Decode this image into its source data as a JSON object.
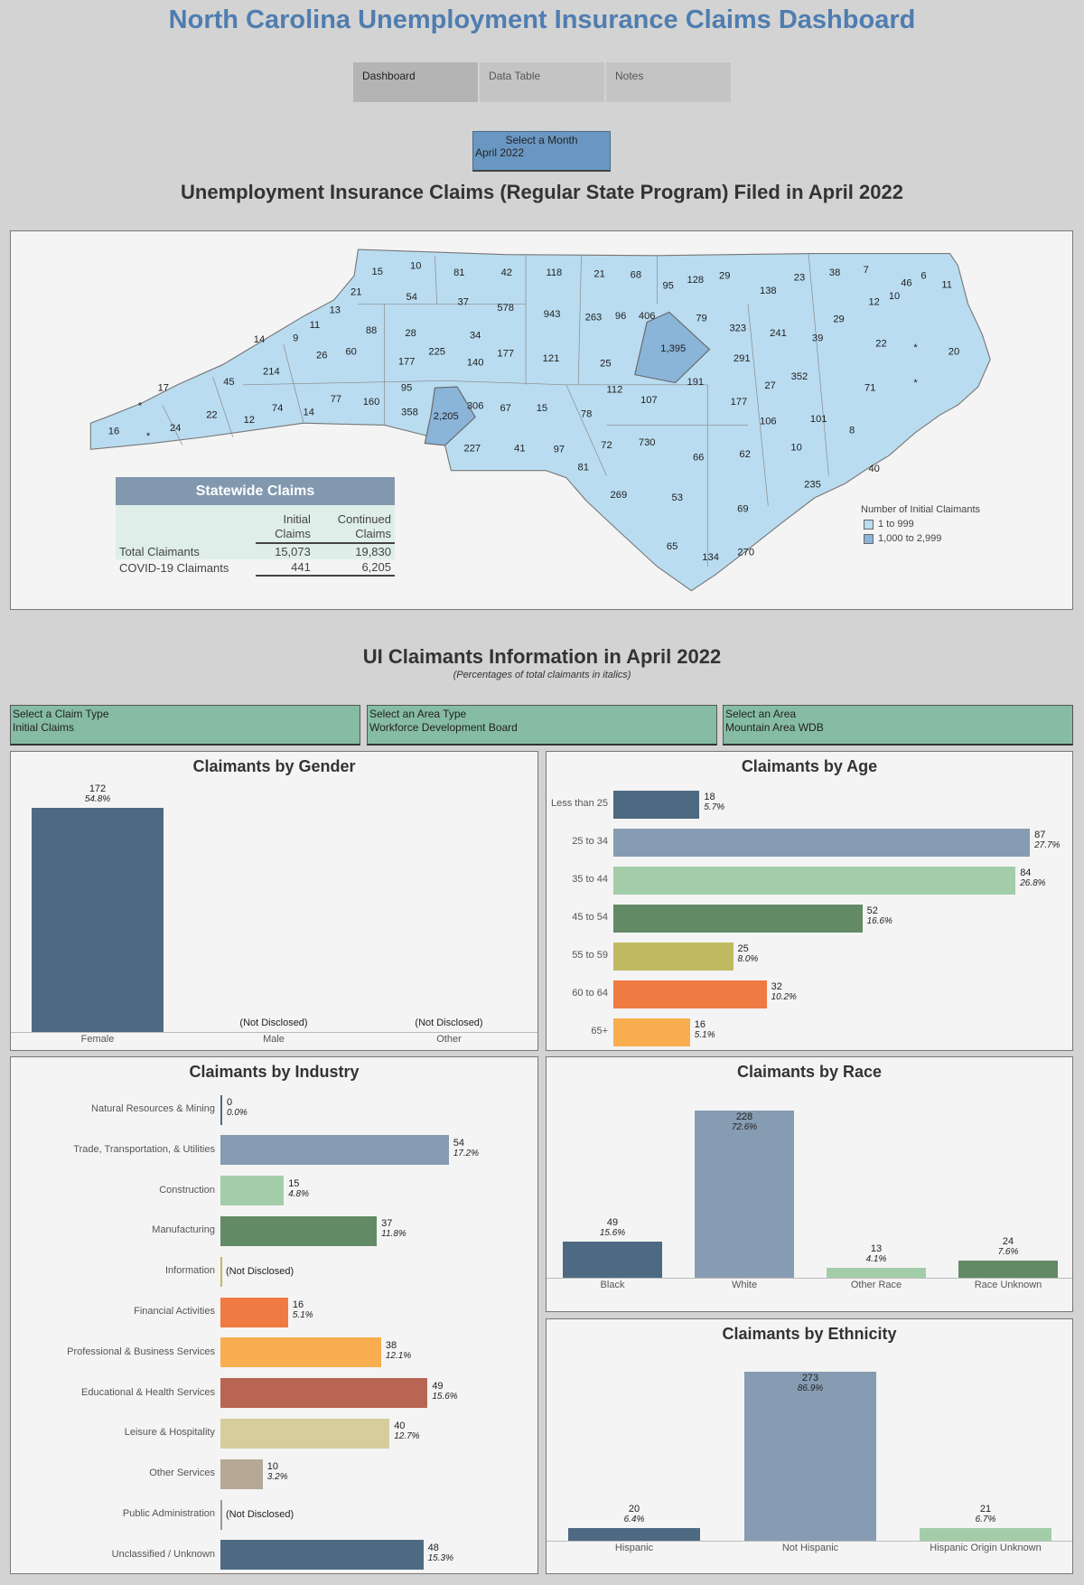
{
  "header": {
    "title": "North Carolina Unemployment Insurance Claims Dashboard"
  },
  "tabs": [
    {
      "label": "Dashboard",
      "active": true
    },
    {
      "label": "Data Table",
      "active": false
    },
    {
      "label": "Notes",
      "active": false
    }
  ],
  "month_select": {
    "label": "Select a Month",
    "value": "April 2022"
  },
  "map_section": {
    "title": "Unemployment Insurance Claims (Regular State Program) Filed in April 2022",
    "county_labels": [
      "15",
      "10",
      "81",
      "42",
      "118",
      "21",
      "68",
      "95",
      "128",
      "29",
      "23",
      "38",
      "7",
      "46",
      "6",
      "11",
      "21",
      "54",
      "37",
      "578",
      "943",
      "263",
      "96",
      "406",
      "138",
      "12",
      "10",
      "13",
      "11",
      "9",
      "14",
      "88",
      "28",
      "34",
      "79",
      "323",
      "241",
      "29",
      "39",
      "22",
      "*",
      "20",
      "60",
      "26",
      "225",
      "177",
      "121",
      "177",
      "140",
      "25",
      "1,395",
      "291",
      "214",
      "45",
      "17",
      "95",
      "352",
      "27",
      "191",
      "112",
      "107",
      "71",
      "*",
      "160",
      "358",
      "2,205",
      "306",
      "67",
      "15",
      "78",
      "177",
      "106",
      "101",
      "8",
      "77",
      "14",
      "74",
      "22",
      "12",
      "*",
      "24",
      "16",
      "*",
      "227",
      "41",
      "97",
      "72",
      "730",
      "66",
      "62",
      "10",
      "40",
      "81",
      "235",
      "269",
      "53",
      "69",
      "65",
      "134",
      "270"
    ],
    "legend": {
      "title": "Number of Initial Claimants",
      "items": [
        {
          "label": "1 to 999",
          "color": "#b9dcf0"
        },
        {
          "label": "1,000 to 2,999",
          "color": "#8ab4d8"
        }
      ]
    },
    "statewide": {
      "title": "Statewide Claims",
      "col1": "Initial Claims",
      "col2": "Continued Claims",
      "rows": [
        {
          "label": "Total Claimants",
          "initial": "15,073",
          "continued": "19,830"
        },
        {
          "label": "COVID-19 Claimants",
          "initial": "441",
          "continued": "6,205"
        }
      ]
    }
  },
  "info_section": {
    "title": "UI Claimants Information in April 2022",
    "note": "(Percentages of total claimants in italics)"
  },
  "filters": [
    {
      "label": "Select a Claim Type",
      "value": "Initial Claims"
    },
    {
      "label": "Select an Area Type",
      "value": "Workforce Development Board"
    },
    {
      "label": "Select an Area",
      "value": "Mountain Area WDB"
    }
  ],
  "chart_data": [
    {
      "id": "gender",
      "type": "bar",
      "title": "Claimants by Gender",
      "categories": [
        "Female",
        "Male",
        "Other"
      ],
      "values": [
        172,
        null,
        null
      ],
      "percents": [
        "54.8%",
        null,
        null
      ],
      "not_disclosed": "(Not Disclosed)",
      "colors": [
        "#4e6a82",
        "#4e6a82",
        "#4e6a82"
      ]
    },
    {
      "id": "age",
      "type": "bar",
      "orientation": "horizontal",
      "title": "Claimants by Age",
      "categories": [
        "Less than 25",
        "25 to 34",
        "35 to 44",
        "45 to 54",
        "55 to 59",
        "60 to 64",
        "65+"
      ],
      "values": [
        18,
        87,
        84,
        52,
        25,
        32,
        16
      ],
      "percents": [
        "5.7%",
        "27.7%",
        "26.8%",
        "16.6%",
        "8.0%",
        "10.2%",
        "5.1%"
      ],
      "colors": [
        "#4e6a82",
        "#869cb2",
        "#a3cda9",
        "#628a65",
        "#bfba5f",
        "#f07b42",
        "#f8ae4e"
      ]
    },
    {
      "id": "industry",
      "type": "bar",
      "orientation": "horizontal",
      "title": "Claimants by Industry",
      "categories": [
        "Natural Resources & Mining",
        "Trade, Transportation, & Utilities",
        "Construction",
        "Manufacturing",
        "Information",
        "Financial Activities",
        "Professional & Business Services",
        "Educational  & Health Services",
        "Leisure & Hospitality",
        "Other Services",
        "Public Administration",
        "Unclassified / Unknown"
      ],
      "values": [
        0,
        54,
        15,
        37,
        null,
        16,
        38,
        49,
        40,
        10,
        null,
        48
      ],
      "percents": [
        "0.0%",
        "17.2%",
        "4.8%",
        "11.8%",
        null,
        "5.1%",
        "12.1%",
        "15.6%",
        "12.7%",
        "3.2%",
        null,
        "15.3%"
      ],
      "not_disclosed": "(Not Disclosed)",
      "colors": [
        "#4e6a82",
        "#869cb2",
        "#a3cda9",
        "#628a65",
        "#bfba5f",
        "#f07b42",
        "#f8ae4e",
        "#b86554",
        "#d6cd9d",
        "#b5a895",
        "#999999",
        "#4e6a82"
      ]
    },
    {
      "id": "race",
      "type": "bar",
      "title": "Claimants by Race",
      "categories": [
        "Black",
        "White",
        "Other Race",
        "Race Unknown"
      ],
      "values": [
        49,
        228,
        13,
        24
      ],
      "percents": [
        "15.6%",
        "72.6%",
        "4.1%",
        "7.6%"
      ],
      "colors": [
        "#4e6a82",
        "#869cb2",
        "#a3cda9",
        "#628a65"
      ]
    },
    {
      "id": "ethnicity",
      "type": "bar",
      "title": "Claimants by Ethnicity",
      "categories": [
        "Hispanic",
        "Not Hispanic",
        "Hispanic Origin Unknown"
      ],
      "values": [
        20,
        273,
        21
      ],
      "percents": [
        "6.4%",
        "86.9%",
        "6.7%"
      ],
      "colors": [
        "#4e6a82",
        "#869cb2",
        "#a3cda9"
      ]
    }
  ]
}
